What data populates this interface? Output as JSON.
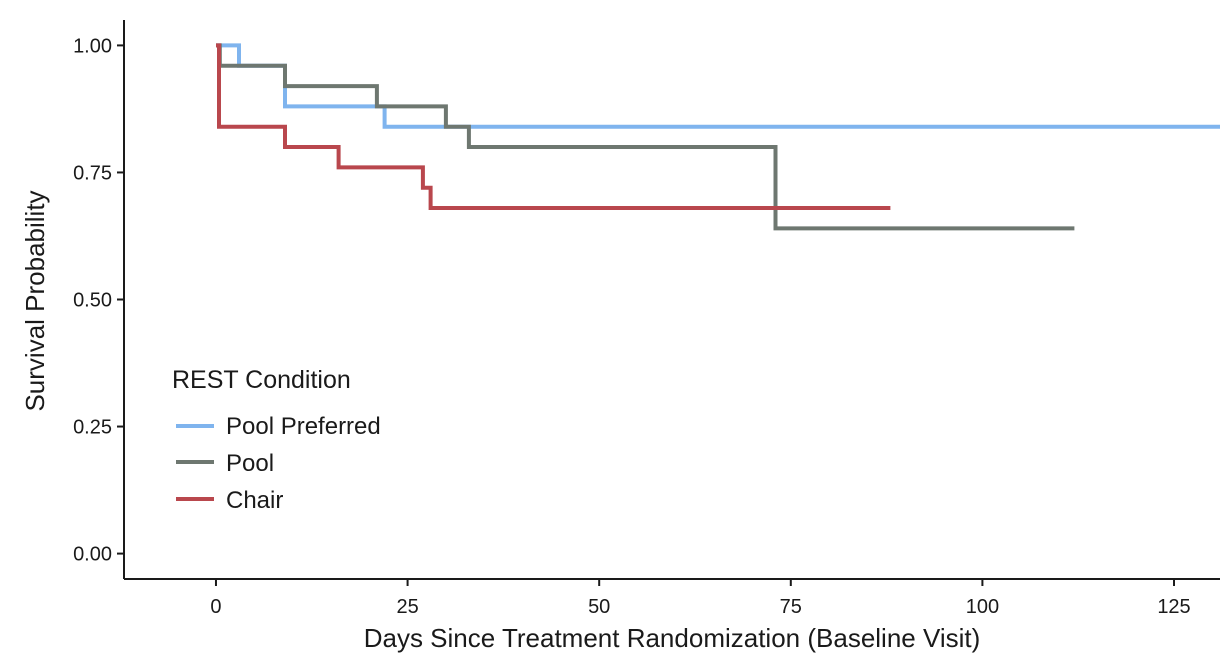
{
  "chart_data": {
    "type": "line",
    "step": true,
    "title": "",
    "xlabel": "Days Since Treatment Randomization (Baseline Visit)",
    "ylabel": "Survival Probability",
    "xlim": [
      -12,
      131
    ],
    "ylim": [
      -0.05,
      1.05
    ],
    "xticks": [
      0,
      25,
      50,
      75,
      100,
      125
    ],
    "xtick_labels": [
      "0",
      "25",
      "50",
      "75",
      "100",
      "125"
    ],
    "yticks": [
      0,
      0.25,
      0.5,
      0.75,
      1.0
    ],
    "ytick_labels": [
      "0.00",
      "0.25",
      "0.50",
      "0.75",
      "1.00"
    ],
    "grid": false,
    "legend": {
      "title": "REST Condition",
      "placement": "bottom-left"
    },
    "series": [
      {
        "name": "Pool Preferred",
        "color": "#7fb4ee",
        "x": [
          0,
          3,
          9,
          22,
          131
        ],
        "y": [
          1.0,
          0.96,
          0.88,
          0.84,
          0.84
        ]
      },
      {
        "name": "Pool",
        "color": "#6e7770",
        "x": [
          0,
          0.5,
          9,
          21,
          30,
          33,
          73,
          112
        ],
        "y": [
          1.0,
          0.96,
          0.92,
          0.88,
          0.84,
          0.8,
          0.64,
          0.64
        ]
      },
      {
        "name": "Chair",
        "color": "#b9474d",
        "x": [
          0,
          0.4,
          9,
          16,
          27,
          28,
          88
        ],
        "y": [
          1.0,
          0.84,
          0.8,
          0.76,
          0.72,
          0.68,
          0.68
        ]
      }
    ]
  }
}
